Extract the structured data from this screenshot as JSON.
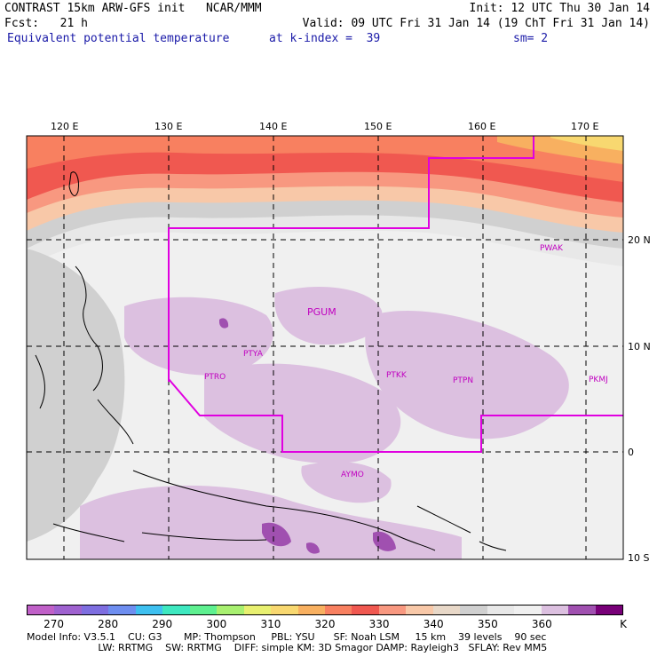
{
  "header": {
    "title": "CONTRAST 15km ARW-GFS init   NCAR/MMM",
    "init": "Init: 12 UTC Thu 30 Jan 14",
    "fcst": "Fcst:   21 h",
    "valid": "Valid: 09 UTC Fri 31 Jan 14 (19 ChT Fri 31 Jan 14)",
    "field": "Equivalent potential temperature",
    "level": "at k-index =  39",
    "smooth": "sm= 2"
  },
  "map": {
    "lon_labels": [
      "120 E",
      "130 E",
      "140 E",
      "150 E",
      "160 E",
      "170 E"
    ],
    "lat_labels": [
      "20 N",
      "10 N",
      "0",
      "10 S"
    ],
    "stations": [
      "PGUM",
      "PTYA",
      "PTRO",
      "PTKK",
      "PTPN",
      "PKMJ",
      "PWAK",
      "AYMO"
    ]
  },
  "colorbar": {
    "colors": [
      "#c060c8",
      "#9f62d0",
      "#7e6ee0",
      "#6e8ef0",
      "#3ec0f0",
      "#3ee8c0",
      "#5ef090",
      "#a8f070",
      "#e8f070",
      "#f8d870",
      "#f8b060",
      "#f88060",
      "#f05850",
      "#f89880",
      "#f8c8a8",
      "#e8d8c8",
      "#d0d0d0",
      "#e8e8e8",
      "#f0f0f0",
      "#dcc0e0",
      "#a050b0",
      "#780078"
    ],
    "labels": [
      "270",
      "280",
      "290",
      "300",
      "310",
      "320",
      "330",
      "340",
      "350",
      "360",
      "K"
    ]
  },
  "model_info": {
    "line1": "Model Info: V3.5.1    CU: G3       MP: Thompson     PBL: YSU      SF: Noah LSM     15 km    39 levels    90 sec",
    "line2": "                       LW: RRTMG    SW: RRTMG    DIFF: simple KM: 3D Smagor DAMP: Rayleigh3   SFLAY: Rev MM5"
  }
}
